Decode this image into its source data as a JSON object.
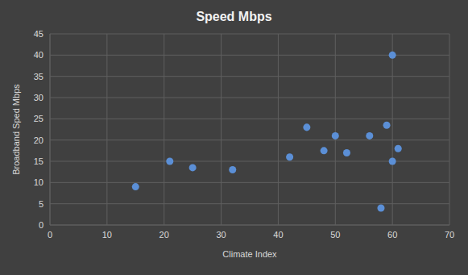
{
  "chart_data": {
    "type": "scatter",
    "title": "Speed Mbps",
    "x_label": "Climate Index",
    "y_label": "Broadband Sped Mbps",
    "x": [
      15,
      21,
      25,
      32,
      42,
      45,
      48,
      50,
      52,
      56,
      58,
      59,
      60,
      60,
      61
    ],
    "values": [
      9,
      15,
      13.5,
      13,
      16,
      23,
      17.5,
      21,
      17,
      21,
      4,
      23.5,
      40,
      15,
      18
    ],
    "xlim": [
      0,
      70
    ],
    "ylim": [
      0,
      45
    ],
    "xticks": [
      0,
      10,
      20,
      30,
      40,
      50,
      60,
      70
    ],
    "yticks": [
      0,
      5,
      10,
      15,
      20,
      25,
      30,
      35,
      40,
      45
    ],
    "grid": true,
    "color": "#5b8fd6",
    "marker": "circle"
  }
}
